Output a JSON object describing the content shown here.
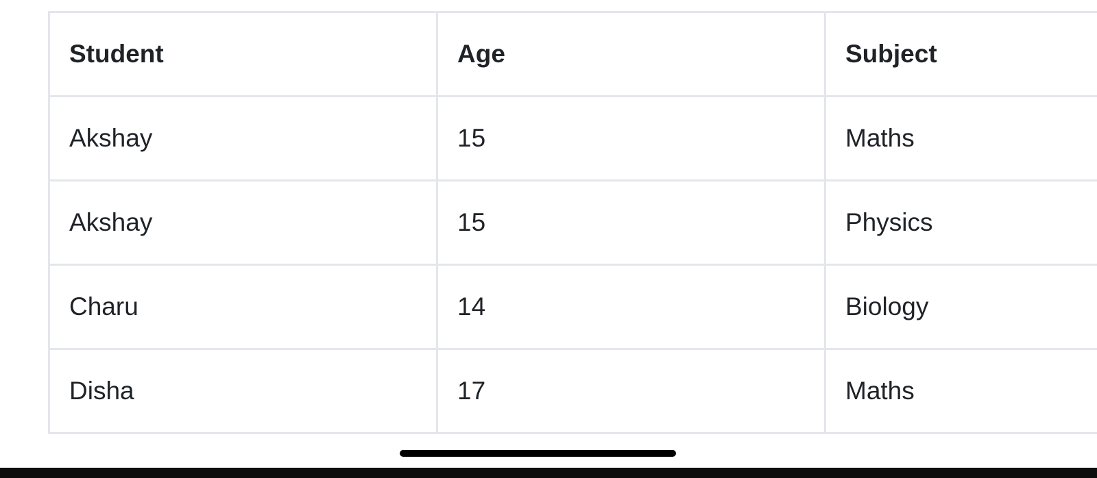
{
  "table": {
    "headers": [
      "Student",
      "Age",
      "Subject"
    ],
    "rows": [
      [
        "Akshay",
        "15",
        "Maths"
      ],
      [
        "Akshay",
        "15",
        "Physics"
      ],
      [
        "Charu",
        "14",
        "Biology"
      ],
      [
        "Disha",
        "17",
        "Maths"
      ]
    ]
  },
  "colors": {
    "text": "#1f2328",
    "border": "#e3e6ea",
    "background": "#ffffff",
    "home_indicator": "#000000"
  }
}
